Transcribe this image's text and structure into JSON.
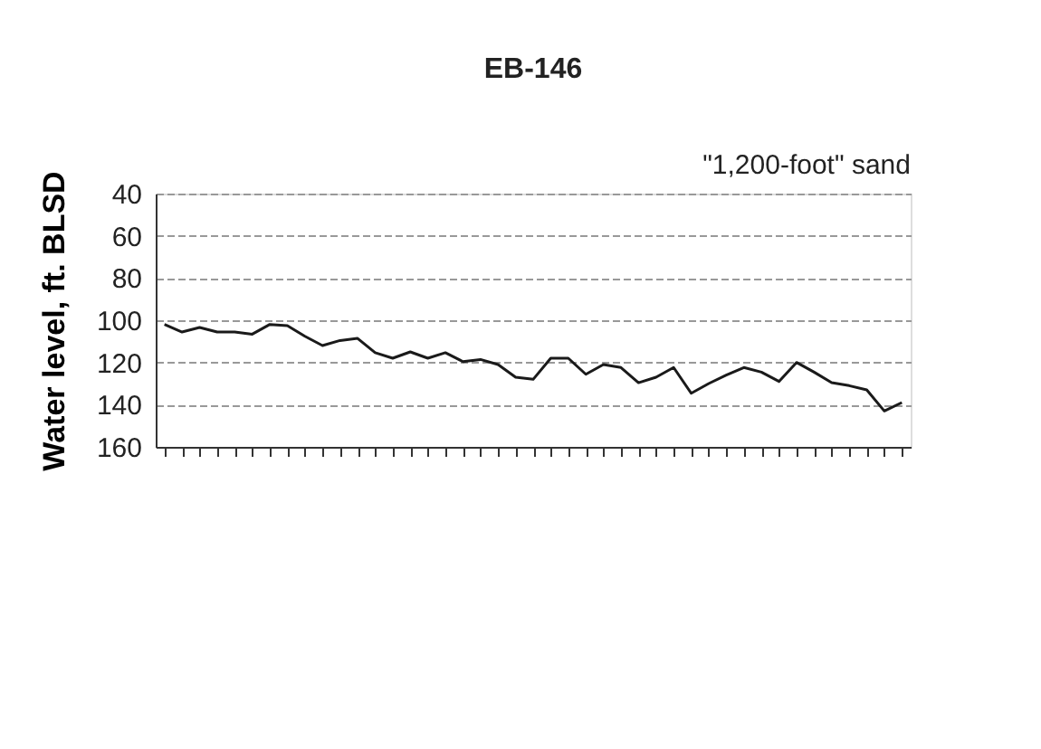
{
  "chart_data": {
    "type": "line",
    "title": "EB-146",
    "ylabel": "Water level, ft. BLSD",
    "annotations": [
      "\"1,200-foot\" sand"
    ],
    "categories": [
      null,
      null,
      null,
      null,
      null,
      null,
      null,
      null,
      null,
      null,
      null,
      null,
      null,
      null,
      null,
      null,
      null,
      null,
      null,
      null,
      null,
      null,
      null,
      null,
      null,
      null,
      null,
      null,
      null,
      null,
      null,
      null,
      null,
      null,
      null,
      null,
      null,
      null,
      null,
      null,
      null,
      null,
      null
    ],
    "series": [
      {
        "color": "#1a1a1a",
        "values": [
          102,
          105.6,
          103.4,
          105.6,
          105.6,
          106.6,
          102,
          102.6,
          107.6,
          112,
          109.6,
          108.6,
          115.4,
          118,
          115,
          118,
          115.4,
          119.6,
          118.6,
          121,
          127,
          128,
          118,
          118,
          125.6,
          121,
          122.4,
          129.6,
          127,
          122.4,
          134.6,
          130,
          126,
          122.4,
          124.6,
          129,
          120,
          124.6,
          129.6,
          131,
          133,
          143,
          139
        ]
      }
    ],
    "ylim": [
      160,
      40
    ],
    "yticks": [
      40,
      60,
      80,
      100,
      120,
      140,
      160
    ],
    "grid": "y",
    "tick_labels": "y",
    "marker": "none",
    "line_style": "solid",
    "legend": false
  }
}
